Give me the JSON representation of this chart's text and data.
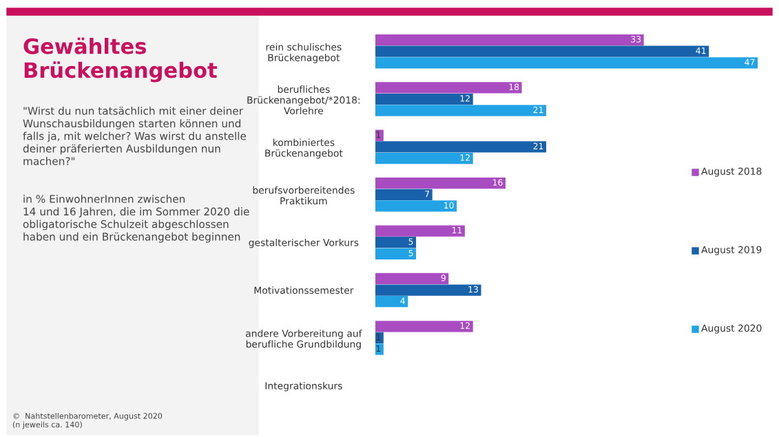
{
  "chart_data": {
    "type": "bar",
    "orientation": "horizontal",
    "title": "Gewähltes\nBrückenangebot",
    "subtitle": "\"Wirst du nun tatsächlich mit einer deiner\nWunschausbildungen starten können und\nfalls ja, mit welcher? Was wirst du anstelle\ndeiner präferierten Ausbildungen nun\nmachen?\"",
    "annotations": [
      "in % EinwohnerInnen zwischen\n14 und 16 Jahren, die im Sommer 2020 die\nobligatorische Schulzeit abgeschlossen\nhaben und ein Brückenangebot beginnen",
      "©  Nahtstellenbarometer, August 2020\n(n jeweils ca. 140)"
    ],
    "categories": [
      "rein schulisches\nBrückenagebot",
      "berufliches\nBrückenangebot/*2018:\nVorlehre",
      "kombiniertes\nBrückenangebot",
      "berufsvorbereitendes\nPraktikum",
      "gestalterischer Vorkurs",
      "Motivationssemester",
      "andere Vorbereitung auf\nberufliche Grundbildung",
      "Integrationskurs"
    ],
    "series": [
      {
        "name": "August 2018",
        "color": "#a94cc2",
        "values": [
          33,
          18,
          1,
          16,
          11,
          9,
          12,
          null
        ]
      },
      {
        "name": "August 2019",
        "color": "#1762ab",
        "values": [
          41,
          12,
          21,
          7,
          5,
          13,
          1,
          null
        ]
      },
      {
        "name": "August 2020",
        "color": "#22a3e6",
        "values": [
          47,
          21,
          12,
          10,
          5,
          4,
          1,
          null
        ]
      }
    ],
    "data_labels": true,
    "legend": "right",
    "grid": false
  }
}
